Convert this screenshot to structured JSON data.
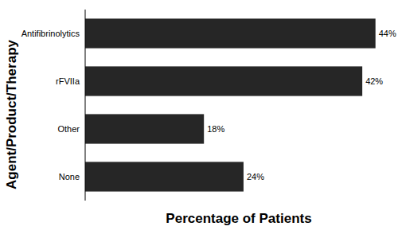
{
  "chart_data": {
    "type": "bar",
    "orientation": "horizontal",
    "x_label": "Percentage of Patients",
    "y_label": "Agent/Product/Therapy",
    "categories": [
      "Antifibrinolytics",
      "rFVIIa",
      "Other",
      "None"
    ],
    "values": [
      44,
      42,
      18,
      24
    ],
    "value_labels": [
      "44%",
      "42%",
      "18%",
      "24%"
    ],
    "color": "#262626",
    "xlim": [
      0,
      45
    ],
    "data_labels": true,
    "tick_labels": "y",
    "grid": false
  }
}
